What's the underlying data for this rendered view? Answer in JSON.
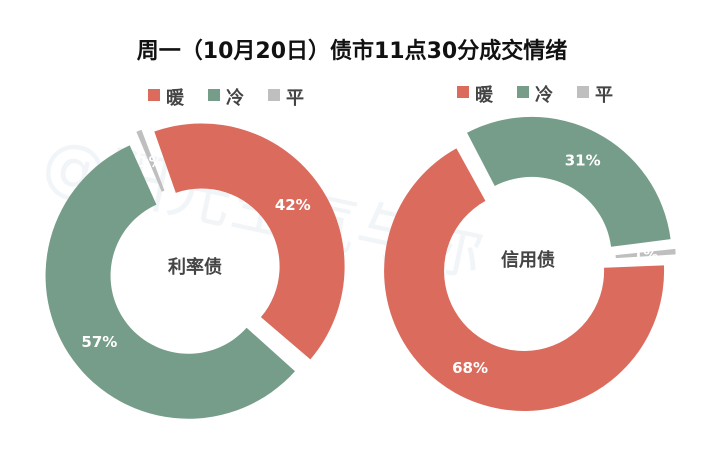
{
  "chart_data": [
    {
      "type": "pie",
      "title": "周一（10月20日）债市11点30分成交情绪",
      "center_label": "利率债",
      "legend": [
        "暖",
        "冷",
        "平"
      ],
      "colors": [
        "#db6b5c",
        "#769d8a",
        "#bfbfbf"
      ],
      "slices": [
        {
          "name": "暖",
          "value": 42,
          "label": "42%"
        },
        {
          "name": "冷",
          "value": 57,
          "label": "57%"
        },
        {
          "name": "平",
          "value": 1,
          "label": "1%"
        }
      ]
    },
    {
      "type": "pie",
      "title": "周一（10月20日）债市11点30分成交情绪",
      "center_label": "信用债",
      "legend": [
        "暖",
        "冷",
        "平"
      ],
      "colors": [
        "#db6b5c",
        "#769d8a",
        "#bfbfbf"
      ],
      "slices": [
        {
          "name": "暖",
          "value": 68,
          "label": "68%"
        },
        {
          "name": "冷",
          "value": 31,
          "label": "31%"
        },
        {
          "name": "平",
          "value": 1,
          "label": "1%"
        }
      ]
    }
  ],
  "watermark": "@阳光空气与你"
}
